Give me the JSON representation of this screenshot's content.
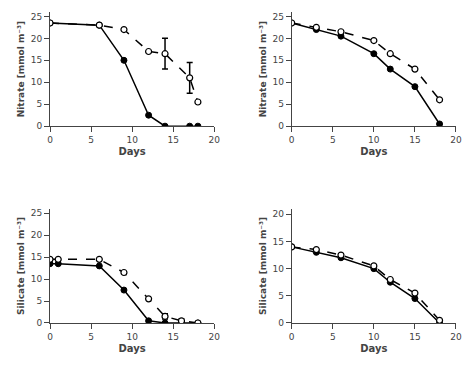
{
  "chart_data": [
    {
      "type": "line",
      "xlabel": "Days",
      "ylabel": "Nitrate [mmol m⁻³]",
      "x": [
        0,
        6,
        9,
        12,
        14,
        17,
        18
      ],
      "series": [
        {
          "values": [
            23.5,
            23.0,
            15.0,
            2.5,
            0.0,
            0.0,
            0.0
          ],
          "color": "#000000",
          "line_style": "solid",
          "marker": "filled"
        },
        {
          "values": [
            23.5,
            23.0,
            22.0,
            17.0,
            16.5,
            11.0,
            5.5
          ],
          "errors": [
            null,
            null,
            null,
            null,
            3.5,
            3.5,
            null
          ],
          "color": "#000000",
          "line_style": "dashed",
          "marker": "open"
        }
      ],
      "xlim": [
        0,
        20
      ],
      "xticks": [
        0,
        5,
        10,
        15,
        20
      ],
      "ylim": [
        0,
        26
      ],
      "yticks": [
        0,
        5,
        10,
        15,
        20,
        25
      ],
      "grid": false
    },
    {
      "type": "line",
      "xlabel": "Days",
      "ylabel": "Nitrate [mmol m⁻³]",
      "x": [
        0,
        3,
        6,
        10,
        12,
        15,
        18
      ],
      "series": [
        {
          "values": [
            23.5,
            22.0,
            20.5,
            16.5,
            13.0,
            9.0,
            0.5
          ],
          "color": "#000000",
          "line_style": "solid",
          "marker": "filled"
        },
        {
          "values": [
            23.5,
            22.5,
            21.5,
            19.5,
            16.5,
            13.0,
            6.0
          ],
          "color": "#000000",
          "line_style": "dashed",
          "marker": "open"
        }
      ],
      "xlim": [
        0,
        20
      ],
      "xticks": [
        0,
        5,
        10,
        15,
        20
      ],
      "ylim": [
        0,
        26
      ],
      "yticks": [
        0,
        5,
        10,
        15,
        20,
        25
      ],
      "grid": false
    },
    {
      "type": "line",
      "xlabel": "Days",
      "ylabel": "Silicate [mmol m⁻³]",
      "x": [
        0,
        1,
        6,
        9,
        12,
        14,
        16,
        18
      ],
      "series": [
        {
          "values": [
            13.5,
            13.5,
            13.0,
            7.5,
            0.5,
            0.0,
            0.0,
            0.0
          ],
          "color": "#000000",
          "line_style": "solid",
          "marker": "filled"
        },
        {
          "values": [
            14.5,
            14.5,
            14.5,
            11.5,
            5.5,
            1.5,
            0.5,
            0.0
          ],
          "errors": [
            null,
            null,
            null,
            null,
            null,
            0.6,
            0.4,
            null
          ],
          "color": "#000000",
          "line_style": "dashed",
          "marker": "open"
        }
      ],
      "xlim": [
        0,
        20
      ],
      "xticks": [
        0,
        5,
        10,
        15,
        20
      ],
      "ylim": [
        0,
        26
      ],
      "yticks": [
        0,
        5,
        10,
        15,
        20,
        25
      ],
      "grid": false
    },
    {
      "type": "line",
      "xlabel": "Days",
      "ylabel": "Silicate [mmol m⁻³]",
      "x": [
        0,
        3,
        6,
        10,
        12,
        15,
        18
      ],
      "series": [
        {
          "values": [
            14.0,
            13.0,
            12.0,
            10.0,
            7.5,
            4.5,
            0.0
          ],
          "color": "#000000",
          "line_style": "solid",
          "marker": "filled"
        },
        {
          "values": [
            14.0,
            13.5,
            12.5,
            10.5,
            8.0,
            5.5,
            0.5
          ],
          "color": "#000000",
          "line_style": "dashed",
          "marker": "open"
        }
      ],
      "xlim": [
        0,
        20
      ],
      "xticks": [
        0,
        5,
        10,
        15,
        20
      ],
      "ylim": [
        0,
        21
      ],
      "yticks": [
        0,
        5,
        10,
        15,
        20
      ],
      "grid": false
    }
  ]
}
